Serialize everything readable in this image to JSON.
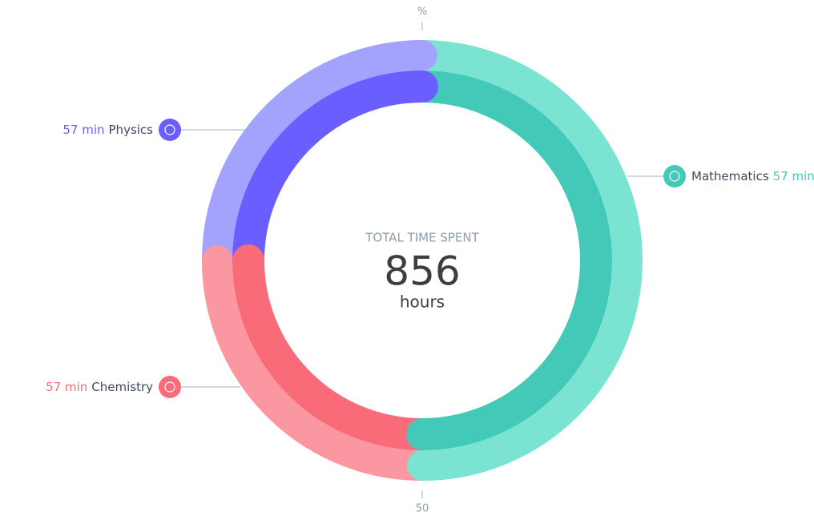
{
  "chart_data": {
    "type": "donut",
    "center_caption": "TOTAL TIME SPENT",
    "total": "856",
    "total_unit": "hours",
    "scale": [
      0,
      100
    ],
    "ticks": [
      {
        "value": 0,
        "label": "%"
      },
      50
    ],
    "series": [
      {
        "name": "Mathematics",
        "time": "57 min",
        "value": 50,
        "color": "#43c9b8",
        "track_color": "#7ae3d2"
      },
      {
        "name": "Chemistry",
        "time": "57 min",
        "value": 25,
        "color": "#f96b78",
        "track_color": "#fb97a1"
      },
      {
        "name": "Physics",
        "time": "57 min",
        "value": 25,
        "color": "#6b5efe",
        "track_color": "#a3a2fd"
      }
    ]
  }
}
